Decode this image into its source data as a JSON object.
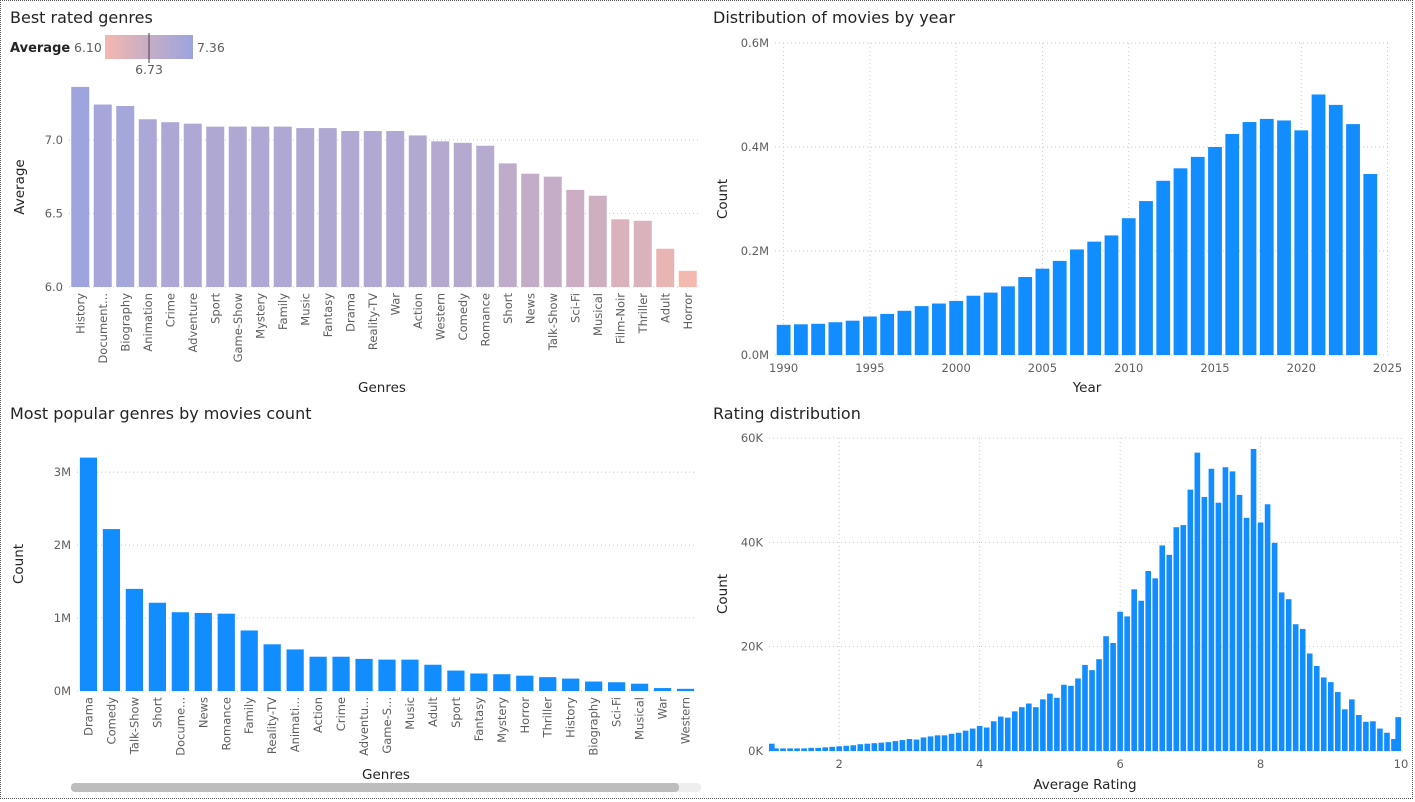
{
  "colors": {
    "bar_blue": "#118dff",
    "gradient_low": "#f4b8ae",
    "gradient_mid": "#c6adc6",
    "gradient_high": "#9da4de"
  },
  "legend": {
    "label": "Average",
    "min_label": "6.10",
    "max_label": "7.36",
    "mid_label": "6.73"
  },
  "chart_data": [
    {
      "type": "bar",
      "title": "Best rated genres",
      "xlabel": "Genres",
      "ylabel": "Average",
      "ylim": [
        6.0,
        7.4
      ],
      "yticks": [
        "6.0",
        "6.5",
        "7.0"
      ],
      "color_scale": {
        "min": 6.1,
        "mid": 6.73,
        "max": 7.36
      },
      "categories": [
        "History",
        "Document...",
        "Biography",
        "Animation",
        "Crime",
        "Adventure",
        "Sport",
        "Game-Show",
        "Mystery",
        "Family",
        "Music",
        "Fantasy",
        "Drama",
        "Reality-TV",
        "War",
        "Action",
        "Western",
        "Comedy",
        "Romance",
        "Short",
        "News",
        "Talk-Show",
        "Sci-Fi",
        "Musical",
        "Film-Noir",
        "Thriller",
        "Adult",
        "Horror"
      ],
      "values": [
        7.36,
        7.24,
        7.23,
        7.14,
        7.12,
        7.11,
        7.09,
        7.09,
        7.09,
        7.09,
        7.08,
        7.08,
        7.06,
        7.06,
        7.06,
        7.03,
        6.99,
        6.98,
        6.96,
        6.84,
        6.77,
        6.75,
        6.66,
        6.62,
        6.46,
        6.45,
        6.26,
        6.11
      ]
    },
    {
      "type": "bar",
      "title": "Distribution of movies by year",
      "xlabel": "Year",
      "ylabel": "Count",
      "ylim": [
        0,
        600000
      ],
      "yticks": [
        "0.0M",
        "0.2M",
        "0.4M",
        "0.6M"
      ],
      "xticks": [
        "1990",
        "1995",
        "2000",
        "2005",
        "2010",
        "2015",
        "2020",
        "2025"
      ],
      "color": "#118dff",
      "x": [
        1990,
        1991,
        1992,
        1993,
        1994,
        1995,
        1996,
        1997,
        1998,
        1999,
        2000,
        2001,
        2002,
        2003,
        2004,
        2005,
        2006,
        2007,
        2008,
        2009,
        2010,
        2011,
        2012,
        2013,
        2014,
        2015,
        2016,
        2017,
        2018,
        2019,
        2020,
        2021,
        2022,
        2023,
        2024
      ],
      "values": [
        58000,
        59000,
        60000,
        63000,
        66000,
        74000,
        79000,
        85000,
        94000,
        99000,
        104000,
        114000,
        120000,
        132000,
        150000,
        166000,
        181000,
        203000,
        218000,
        230000,
        263000,
        296000,
        335000,
        359000,
        381000,
        400000,
        425000,
        448000,
        454000,
        451000,
        432000,
        501000,
        481000,
        444000,
        348000
      ]
    },
    {
      "type": "bar",
      "title": "Most popular genres by movies count",
      "xlabel": "Genres",
      "ylabel": "Count",
      "ylim": [
        0,
        3400000
      ],
      "yticks": [
        "0M",
        "1M",
        "2M",
        "3M"
      ],
      "color": "#118dff",
      "categories": [
        "Drama",
        "Comedy",
        "Talk-Show",
        "Short",
        "Docume...",
        "News",
        "Romance",
        "Family",
        "Reality-TV",
        "Animati...",
        "Action",
        "Crime",
        "Adventu...",
        "Game-S...",
        "Music",
        "Adult",
        "Sport",
        "Fantasy",
        "Mystery",
        "Horror",
        "Thriller",
        "History",
        "Biography",
        "Sci-Fi",
        "Musical",
        "War",
        "Western"
      ],
      "values": [
        3200000,
        2220000,
        1400000,
        1210000,
        1080000,
        1070000,
        1060000,
        830000,
        640000,
        570000,
        470000,
        470000,
        440000,
        430000,
        430000,
        360000,
        280000,
        240000,
        230000,
        210000,
        190000,
        170000,
        130000,
        120000,
        100000,
        40000,
        30000
      ]
    },
    {
      "type": "bar",
      "title": "Rating distribution",
      "xlabel": "Average Rating",
      "ylabel": "Count",
      "ylim": [
        0,
        60000
      ],
      "yticks": [
        "0K",
        "20K",
        "40K",
        "60K"
      ],
      "xlim": [
        1,
        10
      ],
      "xticks": [
        "2",
        "4",
        "6",
        "8",
        "10"
      ],
      "color": "#118dff",
      "x": [
        1.0,
        1.1,
        1.2,
        1.3,
        1.4,
        1.5,
        1.6,
        1.7,
        1.8,
        1.9,
        2.0,
        2.1,
        2.2,
        2.3,
        2.4,
        2.5,
        2.6,
        2.7,
        2.8,
        2.9,
        3.0,
        3.1,
        3.2,
        3.3,
        3.4,
        3.5,
        3.6,
        3.7,
        3.8,
        3.9,
        4.0,
        4.1,
        4.2,
        4.3,
        4.4,
        4.5,
        4.6,
        4.7,
        4.8,
        4.9,
        5.0,
        5.1,
        5.2,
        5.3,
        5.4,
        5.5,
        5.6,
        5.7,
        5.8,
        5.9,
        6.0,
        6.1,
        6.2,
        6.3,
        6.4,
        6.5,
        6.6,
        6.7,
        6.8,
        6.9,
        7.0,
        7.1,
        7.2,
        7.3,
        7.4,
        7.5,
        7.6,
        7.7,
        7.8,
        7.9,
        8.0,
        8.1,
        8.2,
        8.3,
        8.4,
        8.5,
        8.6,
        8.7,
        8.8,
        8.9,
        9.0,
        9.1,
        9.2,
        9.3,
        9.4,
        9.5,
        9.6,
        9.7,
        9.8,
        9.9,
        10.0
      ],
      "values": [
        1400,
        500,
        500,
        500,
        500,
        500,
        600,
        600,
        700,
        800,
        900,
        1000,
        1100,
        1300,
        1400,
        1500,
        1600,
        1700,
        1900,
        2100,
        2300,
        2200,
        2600,
        2800,
        3000,
        3000,
        3300,
        3500,
        3900,
        4300,
        4800,
        4500,
        5700,
        6600,
        6400,
        7600,
        8400,
        9100,
        8400,
        9900,
        11000,
        10200,
        12700,
        12500,
        13900,
        16500,
        15500,
        17600,
        22000,
        20700,
        26700,
        25800,
        31000,
        28800,
        34500,
        33100,
        39400,
        37600,
        42900,
        43300,
        50100,
        57200,
        48700,
        54100,
        47600,
        54400,
        53600,
        49100,
        44700,
        57900,
        43800,
        47300,
        39900,
        30400,
        29100,
        24300,
        23400,
        18700,
        16300,
        14100,
        13200,
        11300,
        8000,
        9900,
        6900,
        5600,
        5700,
        4300,
        3500,
        2300,
        6500
      ]
    }
  ]
}
